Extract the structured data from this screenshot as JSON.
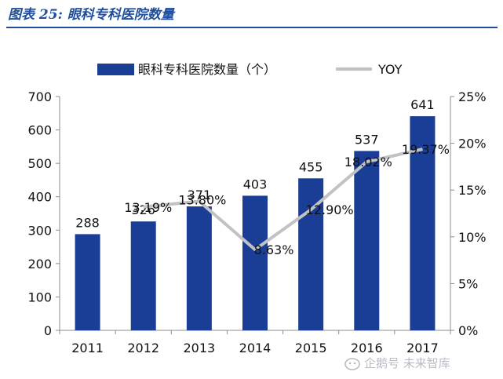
{
  "figure_title": "图表 25:  眼科专科医院数量",
  "watermark": "企鹅号 未来智库",
  "colors": {
    "bar": "#1a3e96",
    "line": "#c0c2c6",
    "title": "#1f4e9c"
  },
  "chart_data": {
    "type": "bar",
    "categories": [
      "2011",
      "2012",
      "2013",
      "2014",
      "2015",
      "2016",
      "2017"
    ],
    "series": [
      {
        "name": "眼科专科医院数量（个）",
        "type": "bar",
        "axis": "left",
        "values": [
          288,
          326,
          371,
          403,
          455,
          537,
          641
        ],
        "labels": [
          "288",
          "326",
          "371",
          "403",
          "455",
          "537",
          "641"
        ]
      },
      {
        "name": "YOY",
        "type": "line",
        "axis": "right",
        "values": [
          null,
          13.19,
          13.8,
          8.63,
          12.9,
          18.02,
          19.37
        ],
        "labels": [
          "",
          "13.19%",
          "13.80%",
          "8.63%",
          "12.90%",
          "18.02%",
          "19.37%"
        ]
      }
    ],
    "y_left": {
      "min": 0,
      "max": 700,
      "ticks": [
        "0",
        "100",
        "200",
        "300",
        "400",
        "500",
        "600",
        "700"
      ]
    },
    "y_right": {
      "min": 0,
      "max": 25,
      "ticks": [
        "0%",
        "5%",
        "10%",
        "15%",
        "20%",
        "25%"
      ]
    },
    "legend": "top",
    "grid": false
  }
}
